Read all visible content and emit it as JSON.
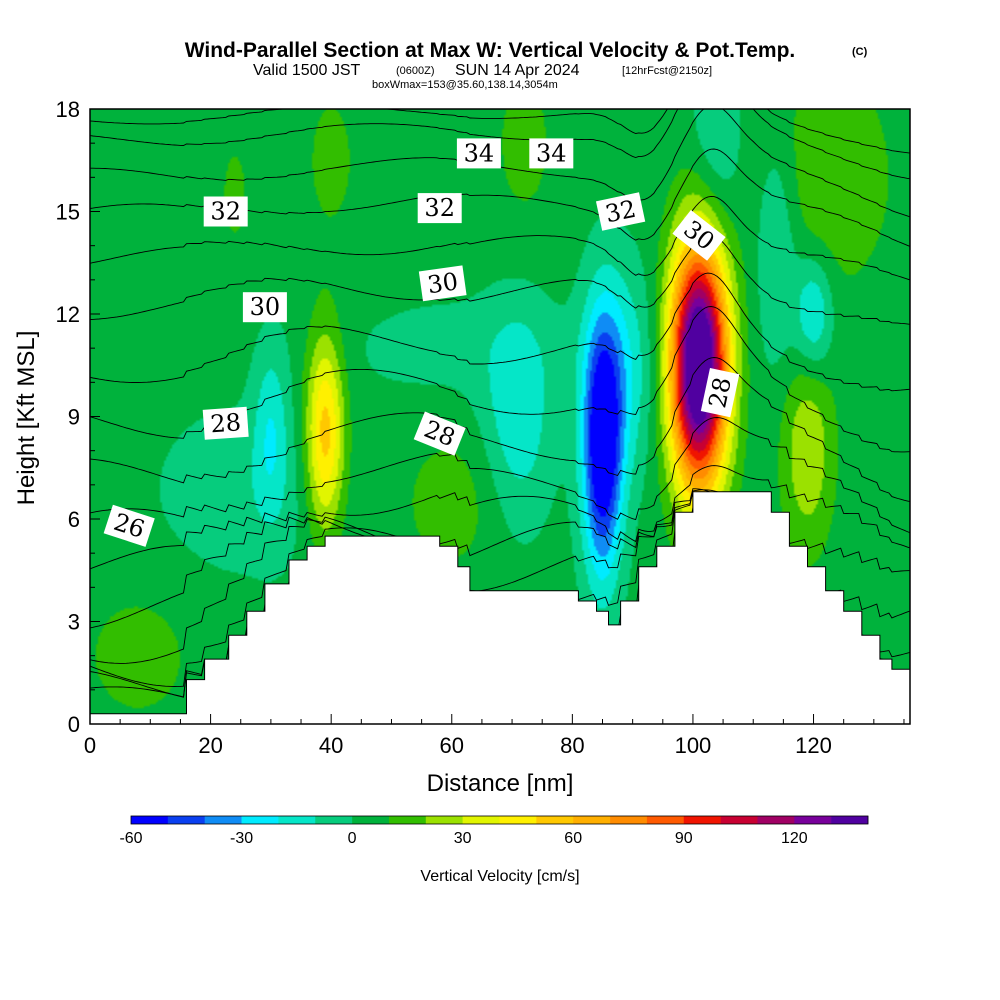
{
  "title": {
    "main": "Wind-Parallel Section at Max W: Vertical Velocity & Pot.Temp.",
    "copyright": "(C)",
    "valid_a": "Valid 1500 JST",
    "valid_b": "(0600Z)",
    "valid_c": "SUN 14 Apr 2024",
    "valid_d": "[12hrFcst@2150z]",
    "box": "boxWmax=153@35.60,138.14,3054m"
  },
  "colors": {
    "terrain": "#ffffff",
    "contour": "#000000",
    "palette": [
      "#0000ff",
      "#0a3ff0",
      "#0f8cf5",
      "#00ebff",
      "#05e6c8",
      "#06cc7d",
      "#00b23c",
      "#32be00",
      "#9be100",
      "#e1f500",
      "#fff000",
      "#ffc800",
      "#ffaf00",
      "#ff8c00",
      "#ff5a00",
      "#f01400",
      "#c80032",
      "#a00064",
      "#78009b",
      "#5000a0"
    ]
  },
  "chart_data": {
    "type": "heatmap",
    "xlabel": "Distance [nm]",
    "ylabel": "Height [Kft MSL]",
    "xlim": [
      0,
      136
    ],
    "ylim": [
      0,
      18
    ],
    "xticks": [
      "0",
      "20",
      "40",
      "60",
      "80",
      "100",
      "120"
    ],
    "xtick_values": [
      0,
      20,
      40,
      60,
      80,
      100,
      120
    ],
    "yticks": [
      "0",
      "3",
      "6",
      "9",
      "12",
      "15",
      "18"
    ],
    "ytick_values": [
      0,
      3,
      6,
      9,
      12,
      15,
      18
    ],
    "colorbar": {
      "label": "Vertical Velocity [cm/s]",
      "min": -60,
      "max": 140,
      "step": 10,
      "tick_labels": [
        "-60",
        "-30",
        "0",
        "30",
        "60",
        "90",
        "120"
      ],
      "tick_values": [
        -60,
        -30,
        0,
        30,
        60,
        90,
        120
      ]
    },
    "terrain_profile": [
      {
        "x": 0,
        "h": 0.3
      },
      {
        "x": 13,
        "h": 0.3
      },
      {
        "x": 16,
        "h": 1.3
      },
      {
        "x": 19,
        "h": 1.9
      },
      {
        "x": 23,
        "h": 2.6
      },
      {
        "x": 26,
        "h": 3.3
      },
      {
        "x": 29,
        "h": 4.1
      },
      {
        "x": 33,
        "h": 4.8
      },
      {
        "x": 36,
        "h": 5.2
      },
      {
        "x": 39,
        "h": 5.5
      },
      {
        "x": 55,
        "h": 5.5
      },
      {
        "x": 58,
        "h": 5.2
      },
      {
        "x": 61,
        "h": 4.6
      },
      {
        "x": 63,
        "h": 3.9
      },
      {
        "x": 78,
        "h": 3.9
      },
      {
        "x": 81,
        "h": 3.6
      },
      {
        "x": 84,
        "h": 3.3
      },
      {
        "x": 86,
        "h": 2.9
      },
      {
        "x": 88,
        "h": 3.6
      },
      {
        "x": 91,
        "h": 4.6
      },
      {
        "x": 94,
        "h": 5.2
      },
      {
        "x": 97,
        "h": 6.2
      },
      {
        "x": 100,
        "h": 6.8
      },
      {
        "x": 110,
        "h": 6.8
      },
      {
        "x": 113,
        "h": 6.2
      },
      {
        "x": 116,
        "h": 5.2
      },
      {
        "x": 119,
        "h": 4.6
      },
      {
        "x": 122,
        "h": 3.9
      },
      {
        "x": 125,
        "h": 3.3
      },
      {
        "x": 128,
        "h": 2.6
      },
      {
        "x": 131,
        "h": 1.9
      },
      {
        "x": 133,
        "h": 1.6
      },
      {
        "x": 136,
        "h": 1.6
      }
    ],
    "updrafts": [
      {
        "x": 101,
        "h": 10.5,
        "sx": 3.3,
        "sy": 2.5,
        "w": 160
      },
      {
        "x": 39,
        "h": 8.5,
        "sx": 2.2,
        "sy": 2.0,
        "w": 52
      },
      {
        "x": 119,
        "h": 8.0,
        "sx": 3.0,
        "sy": 2.0,
        "w": 25
      },
      {
        "x": 122,
        "h": 16.0,
        "sx": 8.0,
        "sy": 2.5,
        "w": 14
      },
      {
        "x": 40,
        "h": 16.5,
        "sx": 4.0,
        "sy": 2.0,
        "w": 8
      },
      {
        "x": 24,
        "h": 15.5,
        "sx": 3.0,
        "sy": 2.0,
        "w": 7
      },
      {
        "x": 72,
        "h": 17.0,
        "sx": 4.0,
        "sy": 2.0,
        "w": 9
      },
      {
        "x": 8,
        "h": 2.0,
        "sx": 7.0,
        "sy": 1.5,
        "w": 10
      },
      {
        "x": 60,
        "h": 6.5,
        "sx": 6.0,
        "sy": 1.5,
        "w": 11
      }
    ],
    "downdrafts": [
      {
        "x": 85,
        "h": 8.0,
        "sx": 2.3,
        "sy": 2.6,
        "w": -68
      },
      {
        "x": 88,
        "h": 10.3,
        "sx": 4.0,
        "sy": 2.2,
        "w": -22
      },
      {
        "x": 120,
        "h": 12.0,
        "sx": 2.2,
        "sy": 1.2,
        "w": -28
      },
      {
        "x": 114,
        "h": 14.0,
        "sx": 2.5,
        "sy": 2.5,
        "w": -18
      },
      {
        "x": 71,
        "h": 9.0,
        "sx": 4.0,
        "sy": 2.2,
        "w": -22
      },
      {
        "x": 30,
        "h": 8.6,
        "sx": 2.0,
        "sy": 1.8,
        "w": -20
      },
      {
        "x": 25,
        "h": 6.8,
        "sx": 10.0,
        "sy": 1.8,
        "w": -10
      },
      {
        "x": 60,
        "h": 11.0,
        "sx": 14.0,
        "sy": 1.2,
        "w": -7
      },
      {
        "x": 104,
        "h": 17.0,
        "sx": 3.0,
        "sy": 2.0,
        "w": -15
      }
    ],
    "theta_levels": [
      {
        "level": 20,
        "h": 0.45,
        "sy": 0.4
      },
      {
        "level": 21,
        "h": 0.9,
        "sy": 0.5
      },
      {
        "level": 22,
        "h": 1.5,
        "sy": 0.6
      },
      {
        "level": 23,
        "h": 2.3,
        "sy": 0.7
      },
      {
        "level": 24,
        "h": 3.3,
        "sy": 0.7
      },
      {
        "level": 25,
        "h": 4.5,
        "sy": 0.6
      },
      {
        "level": 26,
        "h": 5.7,
        "sy": 0.5
      },
      {
        "level": 27,
        "h": 7.2,
        "sy": 0.5
      },
      {
        "level": 28,
        "h": 8.8,
        "sy": 0.5
      },
      {
        "level": 29,
        "h": 10.4,
        "sy": 0.45
      },
      {
        "level": 30,
        "h": 12.2,
        "sy": 0.4
      },
      {
        "level": 31,
        "h": 13.6,
        "sy": 0.35
      },
      {
        "level": 32,
        "h": 14.9,
        "sy": 0.3
      },
      {
        "level": 33,
        "h": 16.0,
        "sy": 0.25
      },
      {
        "level": 34,
        "h": 17.1,
        "sy": 0.2
      },
      {
        "level": 35,
        "h": 17.7,
        "sy": 0.15
      }
    ],
    "contour_labels": [
      {
        "text": "34",
        "x": 64.5,
        "h": 16.7,
        "angle": 0
      },
      {
        "text": "34",
        "x": 76.5,
        "h": 16.7,
        "angle": 0
      },
      {
        "text": "32",
        "x": 22.5,
        "h": 15.0,
        "angle": 0
      },
      {
        "text": "32",
        "x": 58.0,
        "h": 15.1,
        "angle": 0
      },
      {
        "text": "32",
        "x": 88.0,
        "h": 15.0,
        "angle": -12
      },
      {
        "text": "30",
        "x": 101.0,
        "h": 14.3,
        "angle": 38
      },
      {
        "text": "30",
        "x": 29.0,
        "h": 12.2,
        "angle": 0
      },
      {
        "text": "30",
        "x": 58.5,
        "h": 12.9,
        "angle": -8
      },
      {
        "text": "28",
        "x": 22.5,
        "h": 8.8,
        "angle": -4
      },
      {
        "text": "28",
        "x": 58.0,
        "h": 8.5,
        "angle": 22
      },
      {
        "text": "28",
        "x": 104.5,
        "h": 9.7,
        "angle": -78
      },
      {
        "text": "26",
        "x": 6.5,
        "h": 5.8,
        "angle": 18
      }
    ]
  }
}
